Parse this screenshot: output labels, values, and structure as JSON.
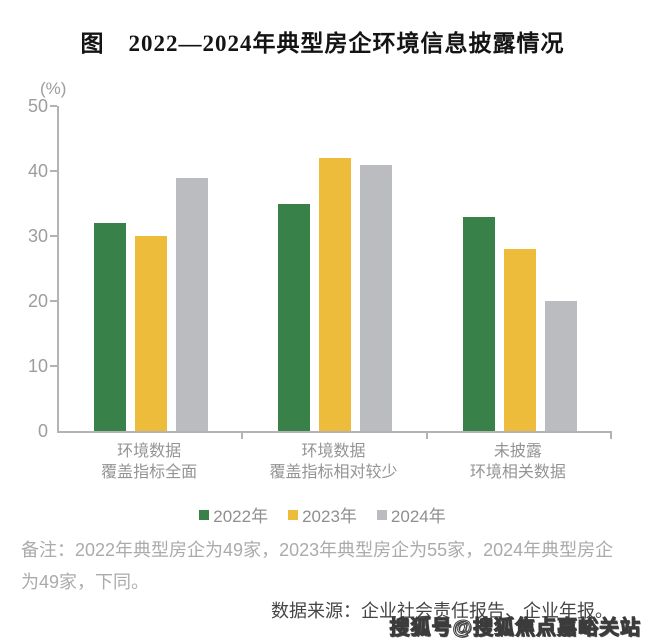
{
  "title": "图　2022—2024年典型房企环境信息披露情况",
  "chart_data": {
    "type": "bar",
    "unit_label": "(%)",
    "categories": [
      [
        "环境数据",
        "覆盖指标全面"
      ],
      [
        "环境数据",
        "覆盖指标相对较少"
      ],
      [
        "未披露",
        "环境相关数据"
      ]
    ],
    "series": [
      {
        "name": "2022年",
        "color": "#38824a",
        "values": [
          32,
          35,
          33
        ]
      },
      {
        "name": "2023年",
        "color": "#eebc3b",
        "values": [
          30,
          42,
          28
        ]
      },
      {
        "name": "2024年",
        "color": "#babcbf",
        "values": [
          39,
          41,
          20
        ]
      }
    ],
    "ylim": [
      0,
      50
    ],
    "yticks": [
      0,
      10,
      20,
      30,
      40,
      50
    ],
    "grid": false,
    "legend_position": "bottom",
    "axis_color": "#b3b3b3"
  },
  "notes": {
    "remark": "备注：2022年典型房企为49家，2023年典型房企为55家，2024年典型房企为49家，下同。",
    "source": "数据来源：企业社会责任报告、企业年报。"
  },
  "watermark": "搜狐号@搜狐焦点嘉峪关站"
}
